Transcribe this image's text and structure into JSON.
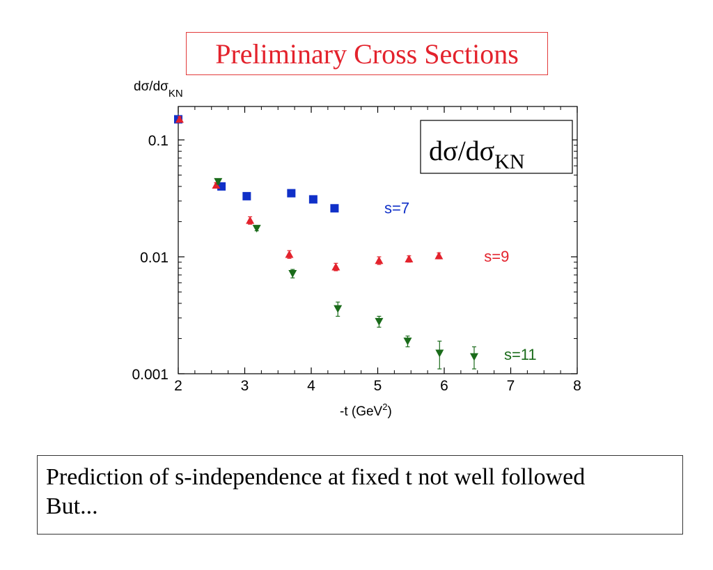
{
  "header": {
    "title": "Preliminary Cross Sections"
  },
  "note": {
    "line1": "Prediction of s-independence at fixed t not well followed",
    "line2": "But..."
  },
  "colors": {
    "s7": "#1030c8",
    "s9": "#e3222c",
    "s11": "#1a6b1a",
    "title": "#e3222c"
  },
  "chart_data": {
    "type": "scatter",
    "title": "",
    "ylabel_main": "dσ/dσ",
    "ylabel_sub": "KN",
    "xlabel_main": "-t (GeV",
    "xlabel_sup": "2",
    "xlabel_end": ")",
    "inset_main": "dσ/dσ",
    "inset_sub": "KN",
    "xlim": [
      2,
      8
    ],
    "ylim": [
      0.001,
      0.2
    ],
    "yscale": "log",
    "grid": false,
    "x_ticks": [
      "2",
      "3",
      "4",
      "5",
      "6",
      "7",
      "8"
    ],
    "y_ticks": [
      "0.001",
      "0.01",
      "0.1"
    ],
    "series": [
      {
        "name": "s=7",
        "marker": "square",
        "color": "#1030c8",
        "points": [
          {
            "x": 2.0,
            "y": 0.15,
            "err": 0.008
          },
          {
            "x": 2.65,
            "y": 0.04,
            "err": 0.002
          },
          {
            "x": 3.03,
            "y": 0.033,
            "err": 0.0017
          },
          {
            "x": 3.7,
            "y": 0.035,
            "err": 0.0017
          },
          {
            "x": 4.03,
            "y": 0.031,
            "err": 0.0015
          },
          {
            "x": 4.35,
            "y": 0.026,
            "err": 0.0015
          }
        ]
      },
      {
        "name": "s=9",
        "marker": "triangle-up",
        "color": "#e3222c",
        "points": [
          {
            "x": 2.02,
            "y": 0.15,
            "err": 0.008
          },
          {
            "x": 2.57,
            "y": 0.041,
            "err": 0.002
          },
          {
            "x": 3.08,
            "y": 0.0205,
            "err": 0.0015
          },
          {
            "x": 3.67,
            "y": 0.0105,
            "err": 0.0008
          },
          {
            "x": 4.37,
            "y": 0.0082,
            "err": 0.0006
          },
          {
            "x": 5.02,
            "y": 0.0093,
            "err": 0.0007
          },
          {
            "x": 5.47,
            "y": 0.0096,
            "err": 0.0006
          },
          {
            "x": 5.92,
            "y": 0.0102,
            "err": 0.0006
          }
        ]
      },
      {
        "name": "s=11",
        "marker": "triangle-down",
        "color": "#1a6b1a",
        "points": [
          {
            "x": 2.6,
            "y": 0.044,
            "err": 0.002
          },
          {
            "x": 3.18,
            "y": 0.0175,
            "err": 0.0008
          },
          {
            "x": 3.72,
            "y": 0.0072,
            "err": 0.0006
          },
          {
            "x": 4.4,
            "y": 0.0036,
            "err": 0.0005
          },
          {
            "x": 5.02,
            "y": 0.0028,
            "err": 0.0003
          },
          {
            "x": 5.45,
            "y": 0.0019,
            "err": 0.0002
          },
          {
            "x": 5.93,
            "y": 0.0015,
            "err": 0.0004
          },
          {
            "x": 6.45,
            "y": 0.0014,
            "err": 0.0003
          }
        ]
      }
    ],
    "series_labels": [
      {
        "text": "s=7",
        "series": 0,
        "x": 5.1,
        "y": 0.026
      },
      {
        "text": "s=9",
        "series": 1,
        "x": 6.6,
        "y": 0.01
      },
      {
        "text": "s=11",
        "series": 2,
        "x": 6.9,
        "y": 0.00145
      }
    ]
  }
}
